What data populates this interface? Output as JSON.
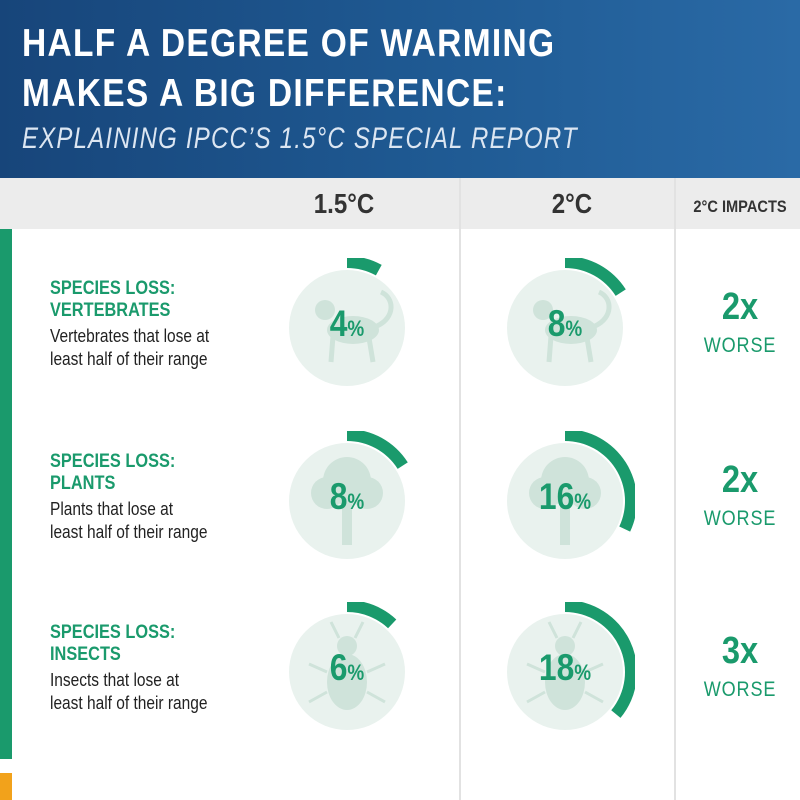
{
  "header": {
    "title_line1": "HALF A DEGREE OF WARMING",
    "title_line2": "MAKES A BIG DIFFERENCE:",
    "subtitle": "EXPLAINING IPCC’S 1.5°C SPECIAL REPORT"
  },
  "columns": {
    "c15": "1.5°C",
    "c2": "2°C",
    "impacts": "2°C IMPACTS"
  },
  "colors": {
    "header_blue": "#1f5a93",
    "accent_green": "#1a9a6c",
    "accent_orange": "#f2a21b"
  },
  "rows": [
    {
      "title1": "SPECIES LOSS:",
      "title2": "VERTEBRATES",
      "desc1": "Vertebrates that lose at",
      "desc2": "least half of their range",
      "icon": "monkey-icon",
      "v15": {
        "num": "4",
        "unit": "%",
        "value": 4
      },
      "v2": {
        "num": "8",
        "unit": "%",
        "value": 8
      },
      "impact": {
        "mult": "2x",
        "word": "WORSE"
      }
    },
    {
      "title1": "SPECIES LOSS:",
      "title2": "PLANTS",
      "desc1": "Plants that lose at",
      "desc2": "least half of their range",
      "icon": "tree-icon",
      "v15": {
        "num": "8",
        "unit": "%",
        "value": 8
      },
      "v2": {
        "num": "16",
        "unit": "%",
        "value": 16
      },
      "impact": {
        "mult": "2x",
        "word": "WORSE"
      }
    },
    {
      "title1": "SPECIES LOSS:",
      "title2": "INSECTS",
      "desc1": "Insects that lose at",
      "desc2": "least half of their range",
      "icon": "beetle-icon",
      "v15": {
        "num": "6",
        "unit": "%",
        "value": 6
      },
      "v2": {
        "num": "18",
        "unit": "%",
        "value": 18
      },
      "impact": {
        "mult": "3x",
        "word": "WORSE"
      }
    }
  ]
}
